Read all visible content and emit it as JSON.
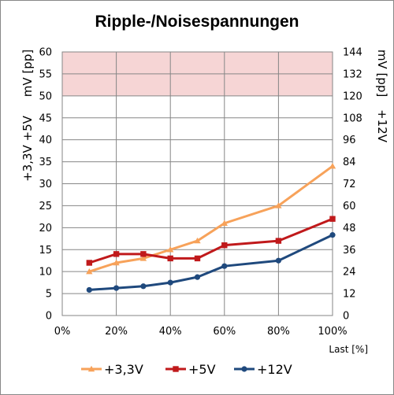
{
  "chart_data": {
    "type": "line",
    "title": "Ripple-/Noisespannungen",
    "xlabel": "Last [%]",
    "ylabel_left_top": "mV [pp]",
    "ylabel_left_bottom": "+3,3V +5V",
    "ylabel_right_top": "mV [pp]",
    "ylabel_right_bottom": "+12V",
    "x_ticks": [
      "0%",
      "20%",
      "40%",
      "60%",
      "80%",
      "100%"
    ],
    "y_left_ticks": [
      "0",
      "5",
      "10",
      "15",
      "20",
      "25",
      "30",
      "35",
      "40",
      "45",
      "50",
      "55",
      "60"
    ],
    "y_right_ticks": [
      "0",
      "12",
      "24",
      "36",
      "48",
      "60",
      "72",
      "84",
      "96",
      "108",
      "120",
      "132",
      "144"
    ],
    "xlim": [
      0,
      100
    ],
    "ylim_left": [
      0,
      60
    ],
    "ylim_right": [
      0,
      144
    ],
    "limit_band_left": [
      50,
      60
    ],
    "limit_band_color": "#f6d5d5",
    "grid": true,
    "legend_position": "bottom",
    "x": [
      10,
      20,
      30,
      40,
      50,
      60,
      80,
      100
    ],
    "series": [
      {
        "name": "+3,3V",
        "axis": "left",
        "color": "#f7a25a",
        "marker": "triangle",
        "values": [
          10,
          12,
          13,
          15,
          17,
          21,
          25,
          34
        ]
      },
      {
        "name": "+5V",
        "axis": "left",
        "color": "#c0191b",
        "marker": "square",
        "values": [
          12,
          14,
          14,
          13,
          13,
          16,
          17,
          22
        ]
      },
      {
        "name": "+12V",
        "axis": "right",
        "color": "#1f497d",
        "marker": "circle",
        "values": [
          14,
          15,
          16,
          18,
          21,
          27,
          30,
          44
        ]
      }
    ]
  }
}
